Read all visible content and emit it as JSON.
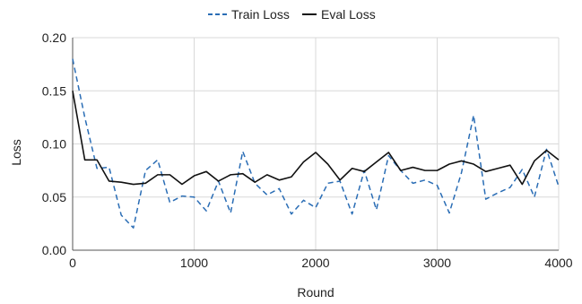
{
  "chart_data": {
    "type": "line",
    "title": "",
    "xlabel": "Round",
    "ylabel": "Loss",
    "xlim": [
      0,
      4000
    ],
    "ylim": [
      0.0,
      0.2
    ],
    "x_ticks": [
      0,
      1000,
      2000,
      3000,
      4000
    ],
    "x_tick_labels": [
      "0",
      "1000",
      "2000",
      "3000",
      "4000"
    ],
    "y_ticks": [
      0.0,
      0.05,
      0.1,
      0.15,
      0.2
    ],
    "y_tick_labels": [
      "0.00",
      "0.05",
      "0.10",
      "0.15",
      "0.20"
    ],
    "grid": true,
    "legend_position": "top-center",
    "series": [
      {
        "name": "Train Loss",
        "color": "#2a6db5",
        "style": "dashed",
        "x": [
          0,
          100,
          200,
          300,
          400,
          500,
          600,
          700,
          800,
          900,
          1000,
          1100,
          1200,
          1300,
          1400,
          1500,
          1600,
          1700,
          1800,
          1900,
          2000,
          2100,
          2200,
          2300,
          2400,
          2500,
          2600,
          2700,
          2800,
          2900,
          3000,
          3100,
          3200,
          3300,
          3400,
          3500,
          3600,
          3700,
          3800,
          3900,
          4000
        ],
        "y": [
          0.18,
          0.125,
          0.077,
          0.078,
          0.033,
          0.021,
          0.075,
          0.085,
          0.045,
          0.051,
          0.05,
          0.037,
          0.065,
          0.035,
          0.093,
          0.063,
          0.052,
          0.058,
          0.034,
          0.047,
          0.04,
          0.063,
          0.065,
          0.034,
          0.075,
          0.038,
          0.089,
          0.075,
          0.063,
          0.066,
          0.061,
          0.035,
          0.073,
          0.127,
          0.048,
          0.054,
          0.059,
          0.076,
          0.05,
          0.095,
          0.06
        ]
      },
      {
        "name": "Eval Loss",
        "color": "#111111",
        "style": "solid",
        "x": [
          0,
          100,
          200,
          300,
          400,
          500,
          600,
          700,
          800,
          900,
          1000,
          1100,
          1200,
          1300,
          1400,
          1500,
          1600,
          1700,
          1800,
          1900,
          2000,
          2100,
          2200,
          2300,
          2400,
          2500,
          2600,
          2700,
          2800,
          2900,
          3000,
          3100,
          3200,
          3300,
          3400,
          3500,
          3600,
          3700,
          3800,
          3900,
          4000
        ],
        "y": [
          0.15,
          0.085,
          0.085,
          0.065,
          0.064,
          0.062,
          0.063,
          0.071,
          0.071,
          0.062,
          0.07,
          0.074,
          0.065,
          0.071,
          0.072,
          0.064,
          0.071,
          0.066,
          0.069,
          0.083,
          0.092,
          0.081,
          0.066,
          0.077,
          0.074,
          0.083,
          0.092,
          0.075,
          0.078,
          0.075,
          0.075,
          0.081,
          0.084,
          0.081,
          0.074,
          0.077,
          0.08,
          0.062,
          0.084,
          0.094,
          0.085
        ]
      }
    ]
  }
}
